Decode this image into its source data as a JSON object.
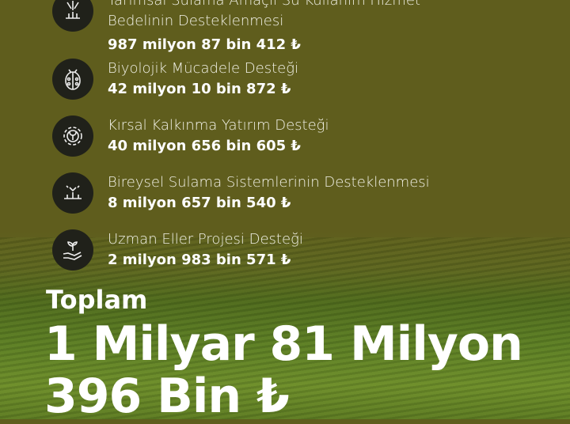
{
  "items": [
    {
      "title": "Tarımsal Sulama Amaçlı Su Kullanım Hizmet Bedelinin Desteklenmesi",
      "value": "987 milyon 87 bin 412 ₺",
      "icon": "irrigation-icon"
    },
    {
      "title": "Biyolojik Mücadele Desteği",
      "value": "42 milyon 10 bin 872 ₺",
      "icon": "ladybug-icon"
    },
    {
      "title": "Kırsal Kalkınma Yatırım Desteği",
      "value": "40 milyon 656 bin 605 ₺",
      "icon": "gear-sprout-icon"
    },
    {
      "title": "Bireysel Sulama Sistemlerinin Desteklenmesi",
      "value": "8 milyon 657 bin 540 ₺",
      "icon": "sprinkler-icon"
    },
    {
      "title": "Uzman Eller Projesi Desteği",
      "value": "2 milyon 983 bin 571 ₺",
      "icon": "hand-plant-icon"
    }
  ],
  "total": {
    "label": "Toplam",
    "line1": "1 Milyar 81 Milyon",
    "line2": "396 Bin ₺"
  },
  "colors": {
    "background": "#5f5d1d",
    "icon_bg": "#20211a"
  }
}
